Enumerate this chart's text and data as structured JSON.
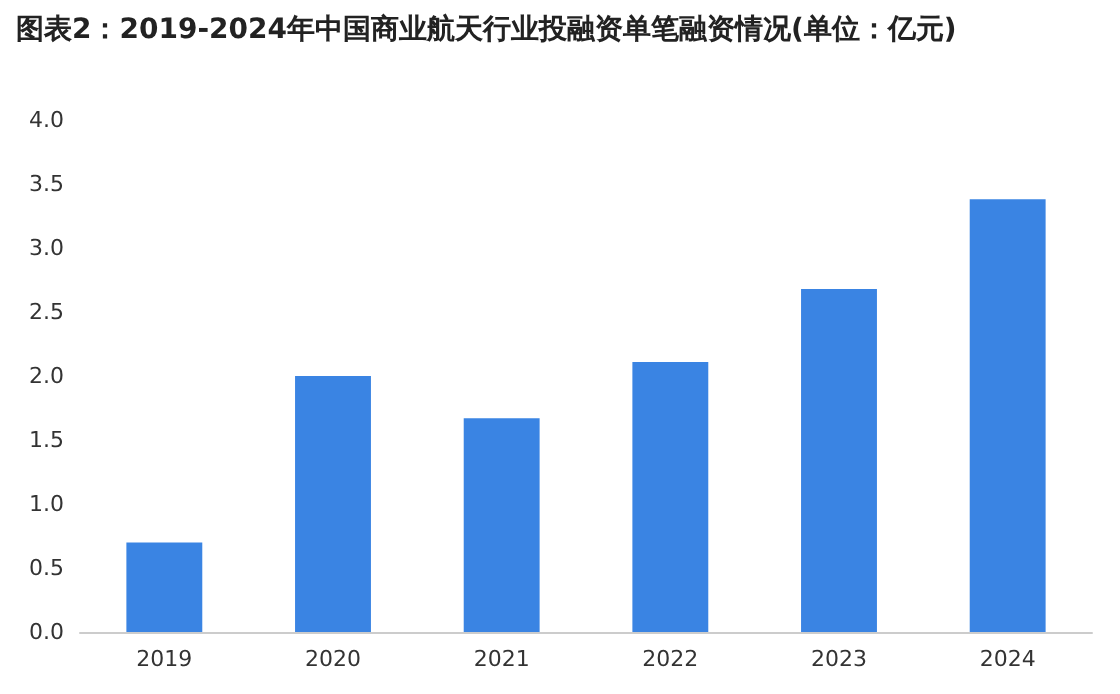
{
  "chart_data": {
    "type": "bar",
    "title": "图表2：2019-2024年中国商业航天行业投融资单笔融资情况(单位：亿元)",
    "categories": [
      "2019",
      "2020",
      "2021",
      "2022",
      "2023",
      "2024"
    ],
    "values": [
      0.7,
      2.0,
      1.67,
      2.11,
      2.68,
      3.38
    ],
    "color": "#3a84e3",
    "ylim": [
      0,
      4
    ],
    "yticks": [
      {
        "value": 0,
        "label": "0.0"
      },
      {
        "value": 0.5,
        "label": "0.5"
      },
      {
        "value": 1,
        "label": "1.0"
      },
      {
        "value": 1.5,
        "label": "1.5"
      },
      {
        "value": 2,
        "label": "2.0"
      },
      {
        "value": 2.5,
        "label": "2.5"
      },
      {
        "value": 3,
        "label": "3.0"
      },
      {
        "value": 3.5,
        "label": "3.5"
      },
      {
        "value": 4,
        "label": "4.0"
      }
    ],
    "grid": false
  }
}
